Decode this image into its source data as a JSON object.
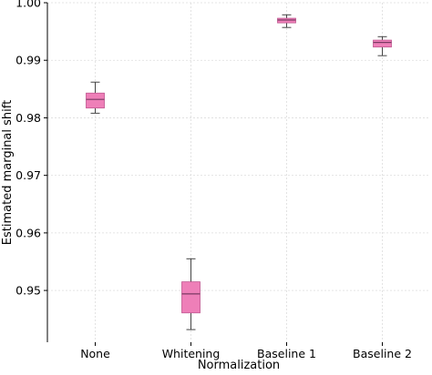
{
  "chart_data": {
    "type": "box",
    "xlabel": "Normalization",
    "ylabel": "Estimated marginal shift",
    "categories": [
      "None",
      "Whitening",
      "Baseline 1",
      "Baseline 2"
    ],
    "ylim": [
      0.941,
      1.0
    ],
    "yticks": [
      0.95,
      0.96,
      0.97,
      0.98,
      0.99,
      1.0
    ],
    "ytick_labels": [
      "0.95",
      "0.96",
      "0.97",
      "0.98",
      "0.99",
      "1.00"
    ],
    "grid": true,
    "boxes": [
      {
        "category": "None",
        "whisker_low": 0.9808,
        "q1": 0.9817,
        "median": 0.9832,
        "q3": 0.9843,
        "whisker_high": 0.9862
      },
      {
        "category": "Whitening",
        "whisker_low": 0.9432,
        "q1": 0.9461,
        "median": 0.9494,
        "q3": 0.9515,
        "whisker_high": 0.9555
      },
      {
        "category": "Baseline 1",
        "whisker_low": 0.9957,
        "q1": 0.9965,
        "median": 0.997,
        "q3": 0.9973,
        "whisker_high": 0.9979
      },
      {
        "category": "Baseline 2",
        "whisker_low": 0.9908,
        "q1": 0.9923,
        "median": 0.9931,
        "q3": 0.9935,
        "whisker_high": 0.9941
      }
    ],
    "colors": {
      "box_fill": "#ee7fb8",
      "box_edge": "#c0568f",
      "median": "#7a3a63",
      "whisker": "#444444",
      "grid": "#dddddd",
      "axis": "#000000"
    }
  }
}
